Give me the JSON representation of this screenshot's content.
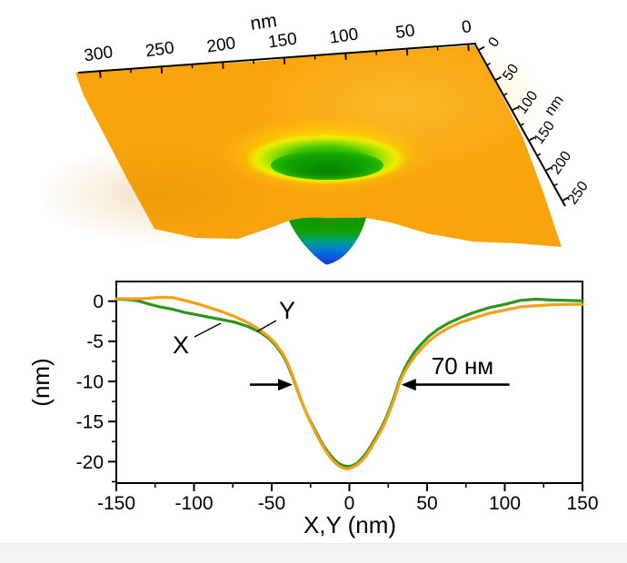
{
  "figure": {
    "background": "#ffffff",
    "footer_band_color": "#f3f3f3"
  },
  "surface_plot": {
    "description": "3D AFM topography of a nanopit in an orange surface with green crater and blue conical tip",
    "top_axis": {
      "title": "nm",
      "tick_labels": [
        "300",
        "250",
        "200",
        "150",
        "100",
        "50",
        "0"
      ]
    },
    "right_axis": {
      "title": "nm",
      "tick_labels": [
        "0",
        "50",
        "100",
        "150",
        "200",
        "250"
      ]
    },
    "colors": {
      "surface_orange": "#F9A40D",
      "crater_yellow": "#EDEE00",
      "crater_green": "#17A600",
      "pit_blue": "#0B4FD8"
    }
  },
  "chart_data": {
    "type": "line",
    "title": "",
    "xlabel": "X,Y (nm)",
    "ylabel": "(nm)",
    "xlim": [
      -150,
      150
    ],
    "ylim": [
      -22.7,
      2.5
    ],
    "x_ticks": [
      -150,
      -100,
      -50,
      0,
      50,
      100,
      150
    ],
    "y_ticks": [
      0,
      -5,
      -10,
      -15,
      -20
    ],
    "x_minor_ticks": [
      -125,
      -75,
      -25,
      25,
      75,
      125
    ],
    "y_minor_ticks": [
      -2.5,
      -7.5,
      -12.5,
      -17.5,
      -22.5
    ],
    "x": [
      -150,
      -143,
      -136,
      -130,
      -122,
      -114,
      -106,
      -98,
      -90,
      -82,
      -74,
      -66,
      -58,
      -52,
      -47,
      -43,
      -40,
      -37,
      -34,
      -31,
      -28,
      -25,
      -22,
      -19,
      -16,
      -13,
      -10,
      -7,
      -4,
      -1,
      2,
      5,
      8,
      11,
      14,
      17,
      20,
      23,
      26,
      29,
      32,
      35,
      38,
      42,
      46,
      51,
      57,
      64,
      72,
      80,
      90,
      100,
      110,
      120,
      130,
      140,
      150
    ],
    "series": [
      {
        "name": "X",
        "color": "#2E9420",
        "values": [
          0.25,
          0.2,
          0.05,
          -0.3,
          -0.7,
          -1.0,
          -1.4,
          -1.7,
          -2.0,
          -2.3,
          -2.6,
          -3.1,
          -3.8,
          -4.6,
          -5.6,
          -6.7,
          -7.8,
          -9.2,
          -10.8,
          -12.4,
          -13.8,
          -15.0,
          -16.1,
          -17.2,
          -18.2,
          -19.0,
          -19.7,
          -20.2,
          -20.5,
          -20.6,
          -20.5,
          -20.2,
          -19.6,
          -18.9,
          -18.0,
          -17.0,
          -16.0,
          -14.8,
          -13.4,
          -11.8,
          -10.0,
          -8.6,
          -7.5,
          -6.3,
          -5.4,
          -4.4,
          -3.5,
          -2.7,
          -2.0,
          -1.4,
          -0.8,
          -0.4,
          0.1,
          0.25,
          0.15,
          0.1,
          0.05
        ]
      },
      {
        "name": "Y",
        "color": "#F5A019",
        "values": [
          0.3,
          0.3,
          0.3,
          0.35,
          0.5,
          0.45,
          0.1,
          -0.3,
          -0.8,
          -1.3,
          -1.9,
          -2.6,
          -3.5,
          -4.4,
          -5.4,
          -6.5,
          -7.6,
          -9.0,
          -10.7,
          -12.3,
          -13.8,
          -15.1,
          -16.3,
          -17.4,
          -18.4,
          -19.3,
          -20.0,
          -20.5,
          -20.8,
          -20.9,
          -20.7,
          -20.4,
          -19.9,
          -19.2,
          -18.3,
          -17.3,
          -16.3,
          -15.1,
          -13.7,
          -12.1,
          -10.3,
          -9.0,
          -8.0,
          -6.9,
          -6.0,
          -5.0,
          -4.1,
          -3.3,
          -2.6,
          -2.1,
          -1.5,
          -1.1,
          -0.7,
          -0.55,
          -0.45,
          -0.4,
          -0.4
        ]
      }
    ],
    "annotations": {
      "width_label": {
        "text": "70 нм"
      },
      "arrows": [
        {
          "from_x": -64,
          "to_x": -36.5,
          "y": -10.4
        },
        {
          "from_x": 103,
          "to_x": 33.5,
          "y": -10.4
        }
      ],
      "series_labels": [
        {
          "text": "X"
        },
        {
          "text": "Y"
        }
      ]
    },
    "legend": "none",
    "grid": false
  }
}
